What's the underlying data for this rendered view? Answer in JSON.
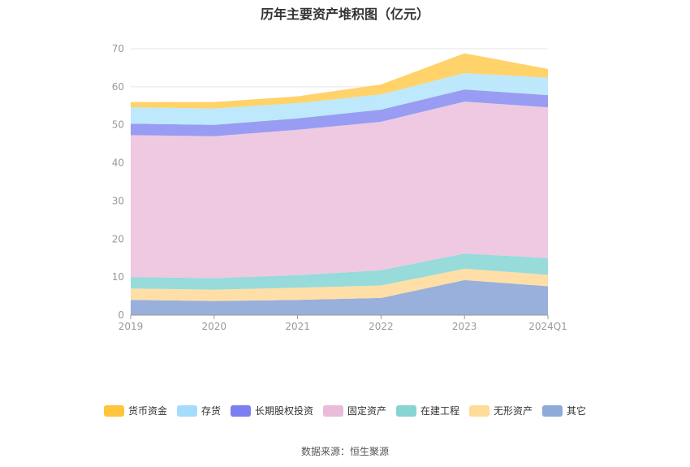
{
  "chart_data": {
    "type": "area",
    "stacked": true,
    "title": "历年主要资产堆积图（亿元）",
    "categories": [
      "2019",
      "2020",
      "2021",
      "2022",
      "2023",
      "2024Q1"
    ],
    "ylim": [
      0,
      70
    ],
    "yticks": [
      "0",
      "10",
      "20",
      "30",
      "40",
      "50",
      "60",
      "70"
    ],
    "grid": true,
    "legend_position": "bottom",
    "series": [
      {
        "name": "其它",
        "color": "#8fa9d8",
        "values": [
          4.0,
          3.7,
          4.0,
          4.5,
          9.2,
          7.6
        ]
      },
      {
        "name": "无形资产",
        "color": "#ffdca0",
        "values": [
          3.0,
          3.0,
          3.2,
          3.3,
          3.0,
          3.0
        ]
      },
      {
        "name": "在建工程",
        "color": "#8ed8d8",
        "values": [
          3.0,
          3.0,
          3.3,
          4.0,
          4.0,
          4.4
        ]
      },
      {
        "name": "固定资产",
        "color": "#eec4e0",
        "values": [
          37.3,
          37.3,
          38.2,
          39.0,
          39.9,
          39.6
        ]
      },
      {
        "name": "长期股权投资",
        "color": "#8f95f2",
        "values": [
          3.0,
          3.0,
          3.0,
          3.2,
          3.2,
          3.2
        ]
      },
      {
        "name": "存货",
        "color": "#b9e6fb",
        "values": [
          4.3,
          4.3,
          4.0,
          4.0,
          4.3,
          4.6
        ]
      },
      {
        "name": "货币资金",
        "color": "#ffcf5c",
        "values": [
          1.4,
          1.7,
          1.8,
          2.6,
          5.2,
          2.3
        ]
      }
    ],
    "legend_colors": [
      "#ffc53d",
      "#a6dcfb",
      "#7b7ff0",
      "#e9bcd9",
      "#86d5d3",
      "#ffdb9a",
      "#8eaad9"
    ]
  },
  "source": "数据来源：恒生聚源"
}
